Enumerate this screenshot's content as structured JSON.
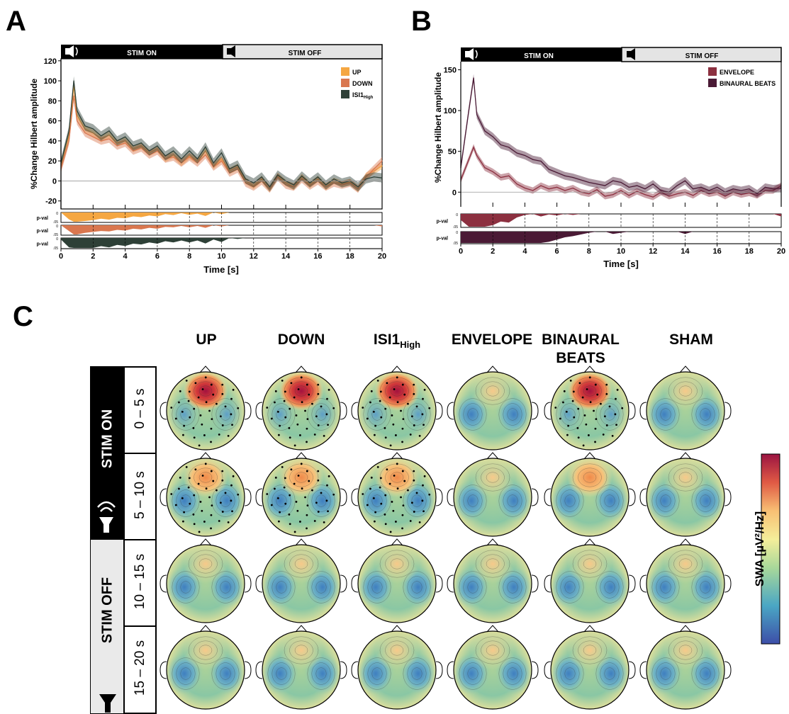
{
  "panels": {
    "a": "A",
    "b": "B",
    "c": "C"
  },
  "banner": {
    "on": "STIM ON",
    "off": "STIM OFF"
  },
  "p_label": "p-val",
  "p_ticks": [
    "0",
    ".05"
  ],
  "colors": {
    "up": "#f5a742",
    "down": "#d9774f",
    "isi1": "#2e4037",
    "envelope": "#8c3040",
    "binaural": "#4a1a35"
  },
  "topo_columns": [
    "UP",
    "DOWN",
    "ISI1",
    "ENVELOPE",
    "BINAURAL BEATS",
    "SHAM"
  ],
  "topo_isi_sub": "High",
  "topo_rows": [
    "0 – 5 s",
    "5 – 10 s",
    "10 – 15 s",
    "15 – 20 s"
  ],
  "row_groups": {
    "on": "STIM ON",
    "off": "STIM OFF"
  },
  "colorbar_label": "SWA [µV²/Hz]",
  "chart_data": [
    {
      "type": "line",
      "panel": "A",
      "xlabel": "Time [s]",
      "ylabel": "%Change Hilbert amplitude",
      "xlim": [
        0,
        20
      ],
      "ylim": [
        -28,
        122
      ],
      "xticks": [
        0,
        2,
        4,
        6,
        8,
        10,
        12,
        14,
        16,
        18,
        20
      ],
      "yticks": [
        -20,
        0,
        20,
        40,
        60,
        80,
        100,
        120
      ],
      "legend": "top-right",
      "series": [
        {
          "name": "UP",
          "x": [
            0,
            0.5,
            0.8,
            1,
            1.5,
            2,
            2.5,
            3,
            3.5,
            4,
            4.5,
            5,
            5.5,
            6,
            6.5,
            7,
            7.5,
            8,
            8.5,
            9,
            9.5,
            10,
            10.5,
            11,
            11.5,
            12,
            12.5,
            13,
            13.5,
            14,
            14.5,
            15,
            15.5,
            16,
            16.5,
            17,
            17.5,
            18,
            18.5,
            19,
            19.5,
            20
          ],
          "y": [
            15,
            45,
            95,
            65,
            52,
            48,
            42,
            46,
            38,
            40,
            32,
            35,
            28,
            32,
            22,
            26,
            18,
            25,
            20,
            30,
            15,
            22,
            10,
            14,
            0,
            -5,
            2,
            -8,
            5,
            -2,
            -6,
            4,
            -4,
            2,
            -6,
            0,
            -3,
            -1,
            -8,
            5,
            10,
            15
          ]
        },
        {
          "name": "DOWN",
          "x": [
            0,
            0.5,
            0.8,
            1,
            1.5,
            2,
            2.5,
            3,
            3.5,
            4,
            4.5,
            5,
            5.5,
            6,
            6.5,
            7,
            7.5,
            8,
            8.5,
            9,
            9.5,
            10,
            10.5,
            11,
            11.5,
            12,
            12.5,
            13,
            13.5,
            14,
            14.5,
            15,
            15.5,
            16,
            16.5,
            17,
            17.5,
            18,
            18.5,
            19,
            19.5,
            20
          ],
          "y": [
            12,
            40,
            85,
            60,
            48,
            44,
            40,
            42,
            35,
            38,
            30,
            33,
            26,
            30,
            22,
            24,
            18,
            24,
            18,
            26,
            14,
            20,
            8,
            12,
            -2,
            -6,
            0,
            -8,
            4,
            -4,
            -6,
            2,
            -5,
            0,
            -6,
            -2,
            -4,
            -2,
            -8,
            4,
            12,
            20
          ]
        },
        {
          "name": "ISI1",
          "x": [
            0,
            0.5,
            0.8,
            1,
            1.5,
            2,
            2.5,
            3,
            3.5,
            4,
            4.5,
            5,
            5.5,
            6,
            6.5,
            7,
            7.5,
            8,
            8.5,
            9,
            9.5,
            10,
            10.5,
            11,
            11.5,
            12,
            12.5,
            13,
            13.5,
            14,
            14.5,
            15,
            15.5,
            16,
            16.5,
            17,
            17.5,
            18,
            18.5,
            19,
            19.5,
            20
          ],
          "y": [
            18,
            50,
            100,
            70,
            55,
            52,
            45,
            50,
            40,
            44,
            35,
            38,
            30,
            35,
            25,
            30,
            22,
            30,
            22,
            34,
            18,
            28,
            12,
            16,
            2,
            -2,
            4,
            -6,
            6,
            0,
            -4,
            5,
            -2,
            4,
            -4,
            2,
            -2,
            0,
            -6,
            2,
            4,
            3
          ]
        }
      ]
    },
    {
      "type": "line",
      "panel": "B",
      "xlabel": "Time [s]",
      "ylabel": "%Change Hilbert amplitude",
      "xlim": [
        0,
        20
      ],
      "ylim": [
        -18,
        160
      ],
      "xticks": [
        0,
        2,
        4,
        6,
        8,
        10,
        12,
        14,
        16,
        18,
        20
      ],
      "yticks": [
        0,
        50,
        100,
        150
      ],
      "legend": "top-right",
      "series": [
        {
          "name": "ENVELOPE",
          "x": [
            0,
            0.5,
            0.8,
            1,
            1.5,
            2,
            2.5,
            3,
            3.5,
            4,
            4.5,
            5,
            5.5,
            6,
            6.5,
            7,
            7.5,
            8,
            8.5,
            9,
            9.5,
            10,
            10.5,
            11,
            11.5,
            12,
            12.5,
            13,
            13.5,
            14,
            14.5,
            15,
            15.5,
            16,
            16.5,
            17,
            17.5,
            18,
            18.5,
            19,
            19.5,
            20
          ],
          "y": [
            15,
            40,
            55,
            45,
            30,
            25,
            18,
            20,
            10,
            5,
            2,
            8,
            4,
            6,
            2,
            5,
            0,
            -2,
            3,
            -5,
            -3,
            2,
            -4,
            1,
            -3,
            -6,
            0,
            -5,
            -2,
            0,
            -4,
            2,
            -2,
            0,
            -5,
            0,
            -3,
            -1,
            -4,
            2,
            2,
            8
          ]
        },
        {
          "name": "BINAURAL BEATS",
          "x": [
            0,
            0.5,
            0.8,
            1,
            1.5,
            2,
            2.5,
            3,
            3.5,
            4,
            4.5,
            5,
            5.5,
            6,
            6.5,
            7,
            7.5,
            8,
            8.5,
            9,
            9.5,
            10,
            10.5,
            11,
            11.5,
            12,
            12.5,
            13,
            13.5,
            14,
            14.5,
            15,
            15.5,
            16,
            16.5,
            17,
            17.5,
            18,
            18.5,
            19,
            19.5,
            20
          ],
          "y": [
            30,
            100,
            140,
            95,
            75,
            68,
            58,
            55,
            48,
            45,
            40,
            38,
            28,
            24,
            20,
            18,
            15,
            12,
            10,
            8,
            14,
            12,
            6,
            8,
            4,
            10,
            2,
            0,
            8,
            14,
            4,
            6,
            2,
            6,
            0,
            4,
            2,
            4,
            -2,
            6,
            4,
            5
          ]
        }
      ]
    }
  ]
}
